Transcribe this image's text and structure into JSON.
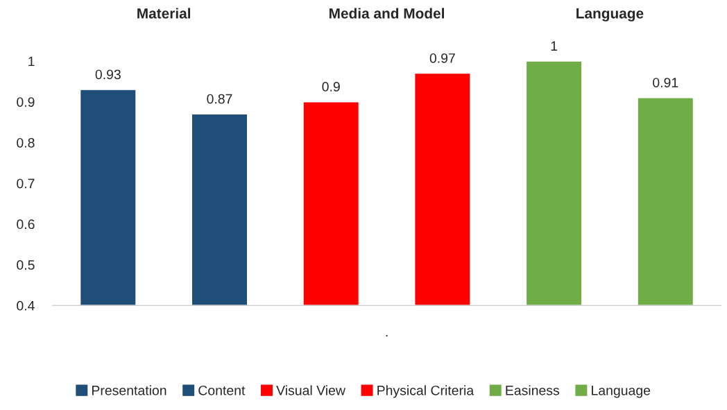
{
  "chart_data": {
    "type": "bar",
    "categories": [
      null
    ],
    "xlabel": ".",
    "series": [
      {
        "name": "Presentation",
        "color": "#1f4e79",
        "values": [
          0.93
        ]
      },
      {
        "name": "Content",
        "color": "#1f4e79",
        "values": [
          0.87
        ]
      },
      {
        "name": "Visual View",
        "color": "#ff0000",
        "values": [
          0.9
        ]
      },
      {
        "name": "Physical Criteria",
        "color": "#ff0000",
        "values": [
          0.97
        ]
      },
      {
        "name": "Easiness",
        "color": "#70ad47",
        "values": [
          1
        ]
      },
      {
        "name": "Language",
        "color": "#70ad47",
        "values": [
          0.91
        ]
      }
    ],
    "annotations": [
      "Material",
      "Media and Model",
      "Language"
    ],
    "ylim": [
      0.4,
      1
    ],
    "yticks": [
      0.4,
      0.5,
      0.6,
      0.7,
      0.8,
      0.9,
      1
    ],
    "data_labels": true,
    "grid": false,
    "legend": "bottom"
  }
}
